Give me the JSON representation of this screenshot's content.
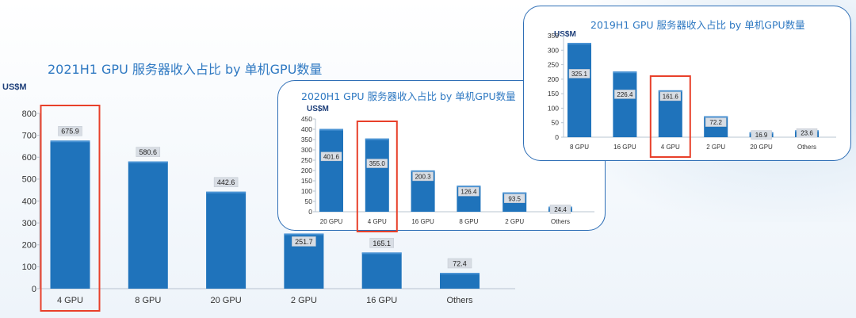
{
  "chart_data": [
    {
      "id": "c2021",
      "type": "bar",
      "title": "2021H1 GPU 服务器收入占比 by 单机GPU数量",
      "ylabel": "US$M",
      "categories": [
        "4 GPU",
        "8 GPU",
        "20 GPU",
        "2 GPU",
        "16 GPU",
        "Others"
      ],
      "values": [
        675.9,
        580.6,
        442.6,
        251.7,
        165.1,
        72.4
      ],
      "ylim": [
        0,
        800
      ],
      "yticks": [
        0,
        100,
        200,
        300,
        400,
        500,
        600,
        700,
        800
      ],
      "highlight": "4 GPU",
      "bar_color": "#1f73bb",
      "highlight_color": "#e8402a"
    },
    {
      "id": "c2020",
      "type": "bar",
      "title": "2020H1 GPU 服务器收入占比 by 单机GPU数量",
      "ylabel": "US$M",
      "categories": [
        "20 GPU",
        "4 GPU",
        "16 GPU",
        "8 GPU",
        "2 GPU",
        "Others"
      ],
      "values": [
        401.6,
        355.0,
        200.3,
        126.4,
        93.5,
        24.4
      ],
      "value_labels": [
        "401.6",
        "355.0",
        "200.3",
        "126.4",
        "93.5",
        "24.4"
      ],
      "ylim": [
        0,
        450
      ],
      "yticks": [
        0,
        50,
        100,
        150,
        200,
        250,
        300,
        350,
        400,
        450
      ],
      "highlight": "4 GPU",
      "bar_color": "#1f73bb",
      "highlight_color": "#e8402a"
    },
    {
      "id": "c2019",
      "type": "bar",
      "title": "2019H1 GPU 服务器收入占比 by 单机GPU数量",
      "ylabel": "US$M",
      "categories": [
        "8 GPU",
        "16 GPU",
        "4 GPU",
        "2 GPU",
        "20 GPU",
        "Others"
      ],
      "values": [
        325.1,
        226.4,
        161.6,
        72.2,
        16.9,
        23.6
      ],
      "ylim": [
        0,
        350
      ],
      "yticks": [
        0,
        50,
        100,
        150,
        200,
        250,
        300,
        350
      ],
      "highlight": "4 GPU",
      "bar_color": "#1f73bb",
      "highlight_color": "#e8402a"
    }
  ]
}
